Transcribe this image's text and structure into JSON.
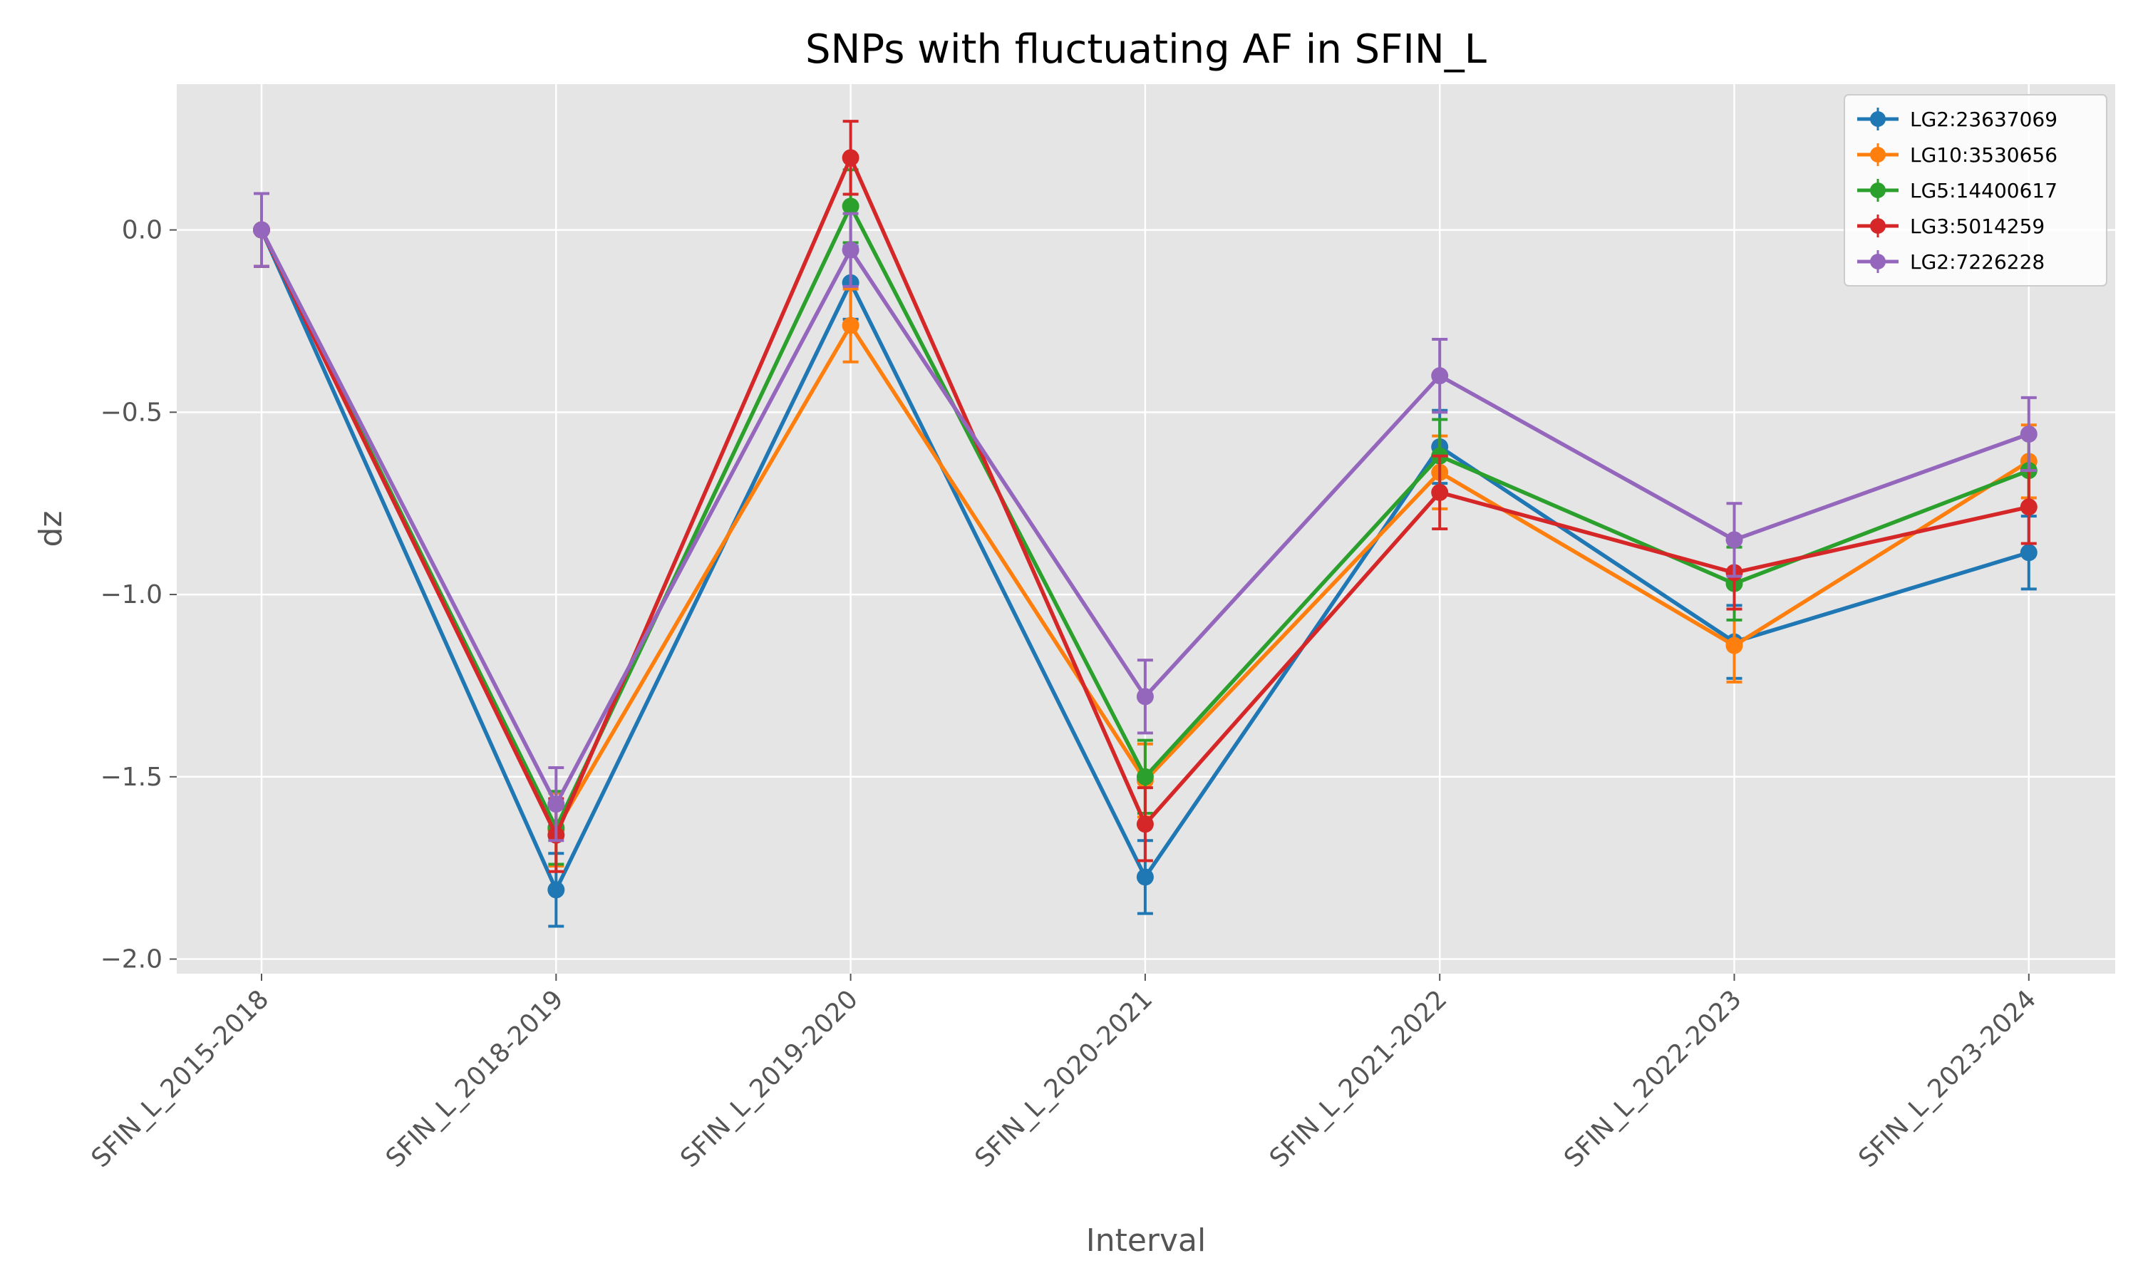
{
  "chart_data": {
    "type": "line",
    "title": "SNPs with fluctuating AF in SFIN_L",
    "xlabel": "Interval",
    "ylabel": "dz",
    "categories": [
      "SFIN_L_2015-2018",
      "SFIN_L_2018-2019",
      "SFIN_L_2019-2020",
      "SFIN_L_2020-2021",
      "SFIN_L_2021-2022",
      "SFIN_L_2022-2023",
      "SFIN_L_2023-2024"
    ],
    "ylim": [
      -2.04,
      0.4
    ],
    "yticks": [
      0.0,
      -0.5,
      -1.0,
      -1.5,
      -2.0
    ],
    "ytick_labels": [
      "0.0",
      "−0.5",
      "−1.0",
      "−1.5",
      "−2.0"
    ],
    "grid": true,
    "legend_position": "top-right",
    "error_bar_halfwidth": 0.1,
    "series": [
      {
        "name": "LG2:23637069",
        "color": "#1f77b4",
        "values": [
          0.0,
          -1.81,
          -0.145,
          -1.775,
          -0.595,
          -1.13,
          -0.885
        ]
      },
      {
        "name": "LG10:3530656",
        "color": "#ff7f0e",
        "values": [
          0.0,
          -1.645,
          -0.262,
          -1.51,
          -0.665,
          -1.14,
          -0.635
        ]
      },
      {
        "name": "LG5:14400617",
        "color": "#2ca02c",
        "values": [
          0.0,
          -1.64,
          0.065,
          -1.5,
          -0.62,
          -0.97,
          -0.66
        ]
      },
      {
        "name": "LG3:5014259",
        "color": "#d62728",
        "values": [
          0.0,
          -1.66,
          0.198,
          -1.63,
          -0.72,
          -0.94,
          -0.76
        ]
      },
      {
        "name": "LG2:7226228",
        "color": "#9467bd",
        "values": [
          0.0,
          -1.575,
          -0.055,
          -1.28,
          -0.4,
          -0.85,
          -0.56
        ]
      }
    ]
  }
}
